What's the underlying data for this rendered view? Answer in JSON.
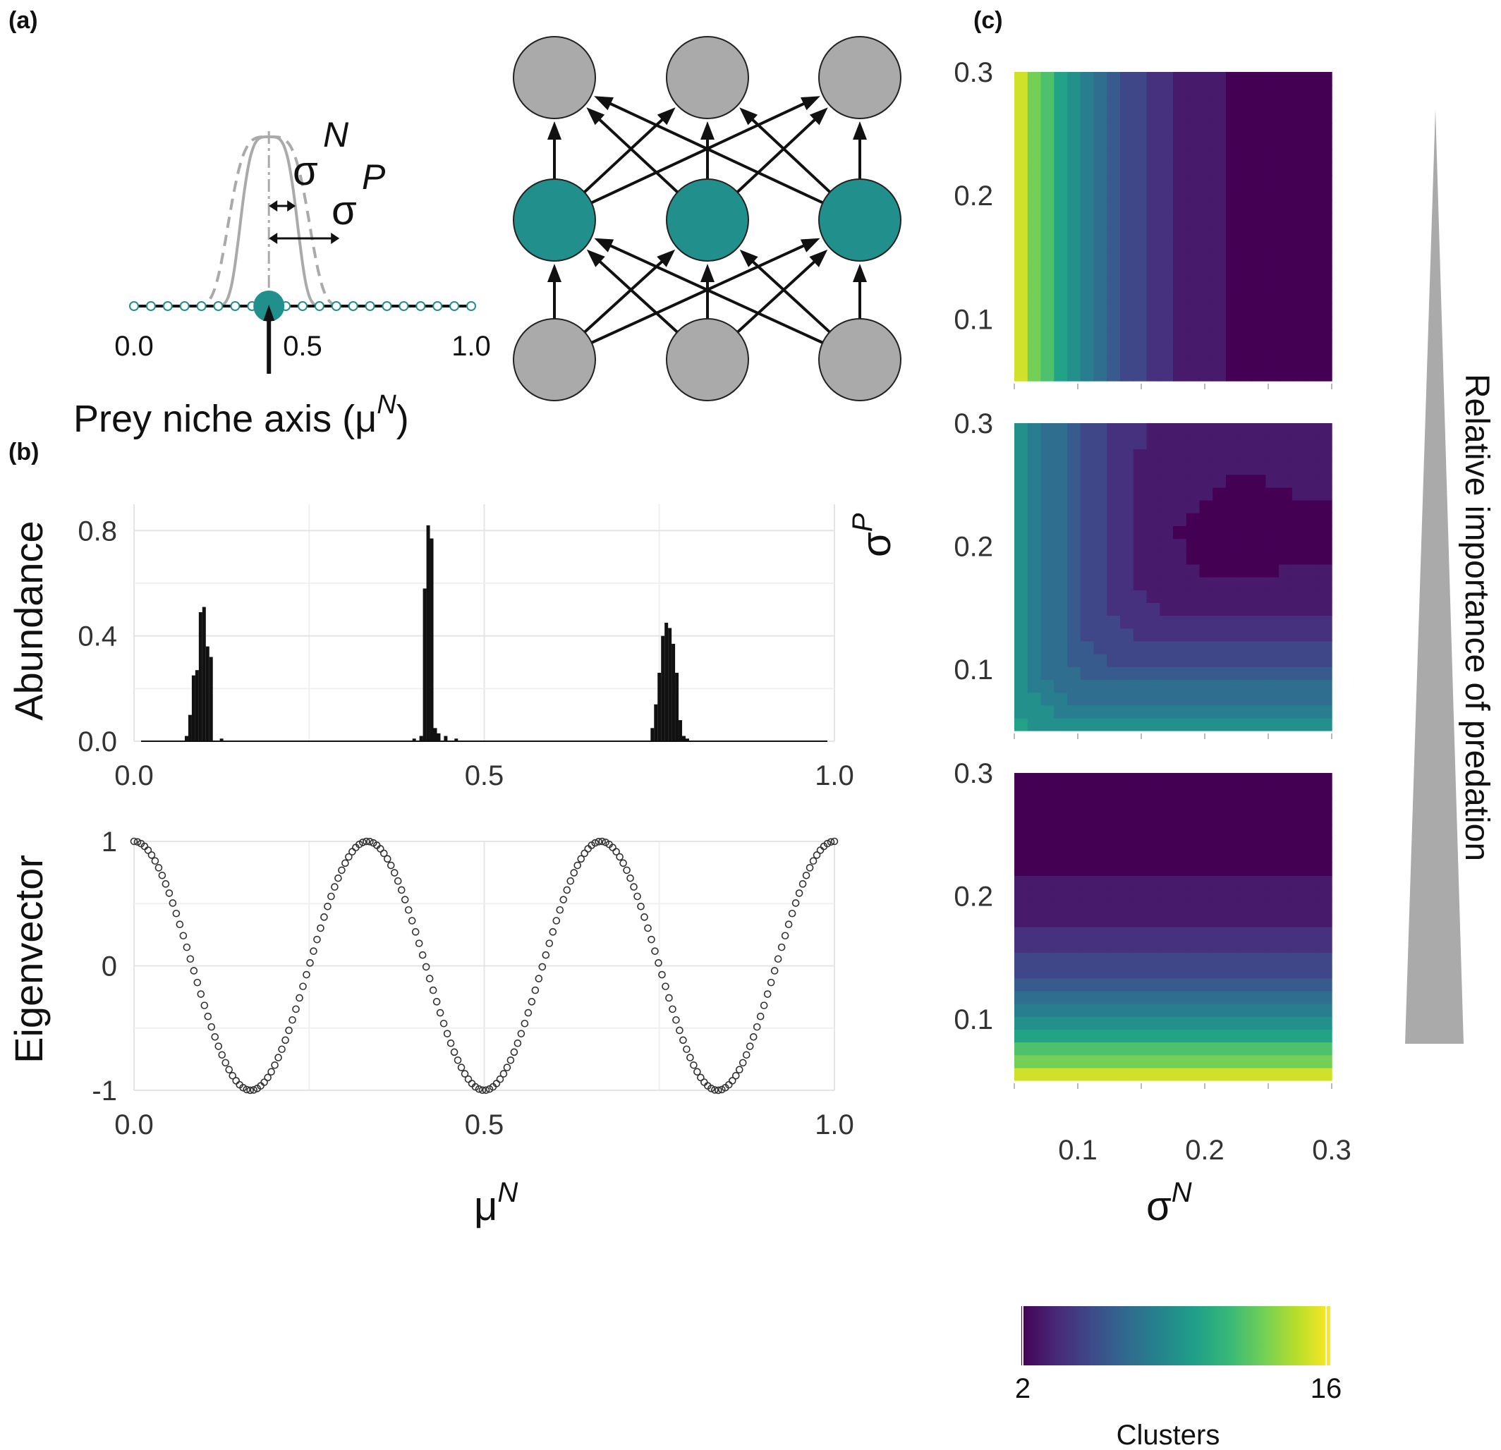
{
  "panels": {
    "a": {
      "label": "(a)",
      "sigma_symbol": "σ",
      "sigma_n_sup": "N",
      "sigma_p_sup": "P",
      "axis_title_main": "Prey niche axis (μ",
      "axis_title_sup": "N",
      "axis_title_close": ")"
    },
    "b": {
      "label": "(b)"
    },
    "c": {
      "label": "(c)"
    }
  },
  "colors": {
    "teal": "#21908d",
    "grey": "#aaaaaa",
    "dark": "#111111",
    "viridis": [
      "#440154",
      "#482878",
      "#3e4989",
      "#31688e",
      "#26828e",
      "#1f9e89",
      "#35b779",
      "#6ece58",
      "#b5de2b",
      "#fde725"
    ]
  },
  "chart_data": [
    {
      "id": "a-niche",
      "type": "line",
      "xlim": [
        0,
        1
      ],
      "ticks": [
        {
          "value": 0.0,
          "label": "0.0"
        },
        {
          "value": 0.5,
          "label": "0.5"
        },
        {
          "value": 1.0,
          "label": "1.0"
        }
      ],
      "focal_niche_position": 0.4,
      "sigma_N": 0.05,
      "sigma_P": 0.2,
      "grid_points": 21
    },
    {
      "id": "a-network",
      "type": "diagram",
      "layers": [
        {
          "name": "top",
          "nodes": 3,
          "color": "grey"
        },
        {
          "name": "middle",
          "nodes": 3,
          "color": "teal"
        },
        {
          "name": "bottom",
          "nodes": 3,
          "color": "grey"
        }
      ]
    },
    {
      "id": "b-abundance",
      "type": "bar",
      "ylabel": "Abundance",
      "xlim": [
        0,
        1
      ],
      "ylim": [
        0,
        0.9
      ],
      "xticks": [
        {
          "value": 0.0,
          "label": "0.0"
        },
        {
          "value": 0.5,
          "label": "0.5"
        },
        {
          "value": 1.0,
          "label": "1.0"
        }
      ],
      "yticks": [
        {
          "value": 0.0,
          "label": "0.0"
        },
        {
          "value": 0.4,
          "label": "0.4"
        },
        {
          "value": 0.8,
          "label": "0.8"
        }
      ],
      "x": [
        0.075,
        0.08,
        0.085,
        0.09,
        0.095,
        0.1,
        0.105,
        0.11,
        0.125,
        0.4,
        0.41,
        0.415,
        0.42,
        0.425,
        0.43,
        0.435,
        0.445,
        0.46,
        0.74,
        0.745,
        0.75,
        0.755,
        0.76,
        0.765,
        0.77,
        0.775,
        0.78,
        0.785,
        0.79
      ],
      "y": [
        0.02,
        0.1,
        0.25,
        0.27,
        0.49,
        0.51,
        0.36,
        0.32,
        0.01,
        0.01,
        0.02,
        0.58,
        0.82,
        0.77,
        0.05,
        0.03,
        0.02,
        0.01,
        0.05,
        0.14,
        0.26,
        0.4,
        0.45,
        0.43,
        0.37,
        0.26,
        0.08,
        0.02,
        0.01
      ]
    },
    {
      "id": "b-eigenvector",
      "type": "scatter",
      "ylabel": "Eigenvector",
      "xlabel_main": "μ",
      "xlabel_sup": "N",
      "xlim": [
        0,
        1
      ],
      "ylim": [
        -1,
        1
      ],
      "xticks": [
        {
          "value": 0.0,
          "label": "0.0"
        },
        {
          "value": 0.5,
          "label": "0.5"
        },
        {
          "value": 1.0,
          "label": "1.0"
        }
      ],
      "yticks": [
        {
          "value": -1,
          "label": "-1"
        },
        {
          "value": 0,
          "label": "0"
        },
        {
          "value": 1,
          "label": "1"
        }
      ],
      "function": "cos(6πx)",
      "points": 200
    },
    {
      "id": "c-heatmaps",
      "type": "heatmap",
      "xlabel_main": "σ",
      "xlabel_sup": "N",
      "ylabel_main": "σ",
      "ylabel_sup": "P",
      "range": [
        0.05,
        0.3
      ],
      "xticks": [
        {
          "value": 0.1,
          "label": "0.1"
        },
        {
          "value": 0.2,
          "label": "0.2"
        },
        {
          "value": 0.3,
          "label": "0.3"
        }
      ],
      "yticks": [
        {
          "value": 0.1,
          "label": "0.1"
        },
        {
          "value": 0.2,
          "label": "0.2"
        },
        {
          "value": 0.3,
          "label": "0.3"
        }
      ],
      "panels": [
        {
          "name": "high-predation",
          "dependence": "sigma_N"
        },
        {
          "name": "intermediate-predation",
          "dependence": "both"
        },
        {
          "name": "low-predation",
          "dependence": "sigma_P"
        }
      ],
      "colorbar": {
        "title": "Clusters",
        "min": 2,
        "max": 16,
        "min_label": "2",
        "max_label": "16"
      },
      "side_label": "Relative importance of predation"
    }
  ]
}
